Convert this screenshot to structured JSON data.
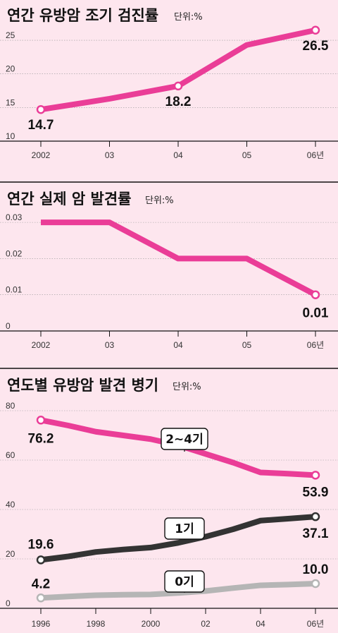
{
  "chart_data": [
    {
      "type": "line",
      "title": "연간 유방암 조기 검진률",
      "unit": "단위:%",
      "categories": [
        "2002",
        "03",
        "04",
        "05",
        "06년"
      ],
      "ylim": [
        10,
        27
      ],
      "yticks": [
        10,
        15,
        20,
        25
      ],
      "grid": true,
      "series": [
        {
          "color": "#ea3d97",
          "values": [
            14.7,
            16.3,
            18.2,
            24.3,
            26.5
          ],
          "labels": [
            "14.7",
            "",
            "18.2",
            "",
            "26.5"
          ]
        }
      ]
    },
    {
      "type": "line",
      "title": "연간 실제 암 발견률",
      "unit": "단위:%",
      "categories": [
        "2002",
        "03",
        "04",
        "05",
        "06년"
      ],
      "ylim": [
        0,
        0.031
      ],
      "yticks": [
        "0",
        "0.01",
        "0.02",
        "0.03"
      ],
      "grid": true,
      "series": [
        {
          "color": "#ea3d97",
          "values": [
            0.03,
            0.03,
            0.02,
            0.02,
            0.01
          ],
          "labels": [
            "",
            "",
            "",
            "",
            "0.01"
          ]
        }
      ]
    },
    {
      "type": "line",
      "title": "연도별 유방암 발견 병기",
      "unit": "단위:%",
      "categories": [
        "1996",
        "1998",
        "2000",
        "02",
        "04",
        "06년"
      ],
      "ylim": [
        0,
        82
      ],
      "yticks": [
        0,
        20,
        40,
        60,
        80
      ],
      "grid": true,
      "series": [
        {
          "name": "2~4기",
          "color": "#ea3d97",
          "x": [
            1996,
            1997,
            1998,
            1999,
            2000,
            2001,
            2002,
            2003,
            2004,
            2005,
            2006
          ],
          "values": [
            76.2,
            74.0,
            71.5,
            70.0,
            68.5,
            66.0,
            62.5,
            59.0,
            55.0,
            54.5,
            53.9
          ],
          "labels": [
            "76.2",
            "",
            "",
            "",
            "",
            "",
            "",
            "",
            "",
            "",
            "53.9"
          ]
        },
        {
          "name": "1기",
          "color": "#333333",
          "x": [
            1996,
            1997,
            1998,
            1999,
            2000,
            2001,
            2002,
            2003,
            2004,
            2005,
            2006
          ],
          "values": [
            19.6,
            21.0,
            22.8,
            23.8,
            24.6,
            26.5,
            29.0,
            32.0,
            35.5,
            36.3,
            37.1
          ],
          "labels": [
            "19.6",
            "",
            "",
            "",
            "",
            "",
            "",
            "",
            "",
            "",
            "37.1"
          ]
        },
        {
          "name": "0기",
          "color": "#b5b5b5",
          "x": [
            1996,
            1997,
            1998,
            1999,
            2000,
            2001,
            2002,
            2003,
            2004,
            2005,
            2006
          ],
          "values": [
            4.2,
            4.8,
            5.3,
            5.5,
            5.6,
            6.2,
            7.0,
            8.2,
            9.3,
            9.6,
            10.0
          ],
          "labels": [
            "4.2",
            "",
            "",
            "",
            "",
            "",
            "",
            "",
            "",
            "",
            "10.0"
          ]
        }
      ]
    }
  ]
}
